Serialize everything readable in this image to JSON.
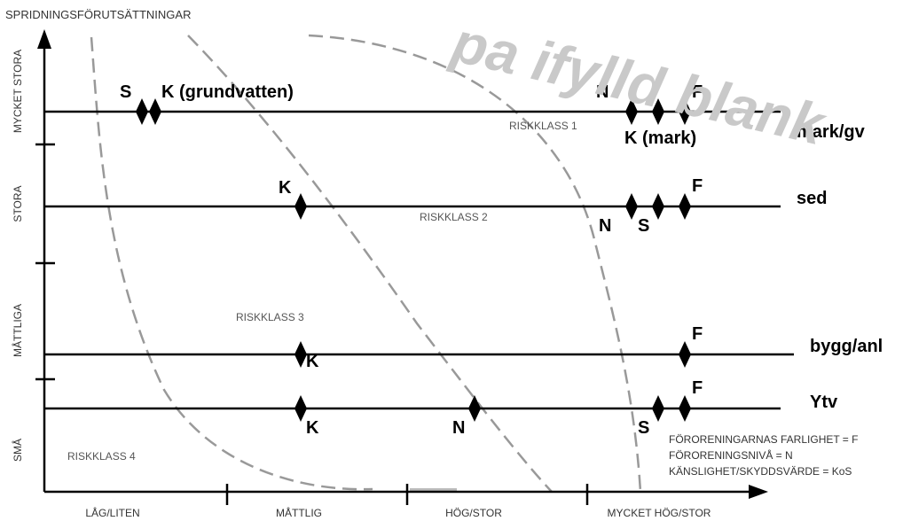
{
  "diagram": {
    "y_axis_title": "SPRIDNINGSFÖRUTSÄTTNINGAR",
    "y_categories": [
      "MYCKET STORA",
      "STORA",
      "MÅTTLIGA",
      "SMÅ"
    ],
    "x_categories": [
      "LÅG/LITEN",
      "MÅTTLIG",
      "HÖG/STOR",
      "MYCKET HÖG/STOR"
    ],
    "risk_classes": [
      "RISKKLASS 1",
      "RISKKLASS 2",
      "RISKKLASS 3",
      "RISKKLASS 4"
    ],
    "rows": [
      {
        "name": "mark/gv",
        "labels": [
          "S",
          "K (grundvatten)",
          "N",
          "K (mark)",
          "F"
        ]
      },
      {
        "name": "sed",
        "labels": [
          "K",
          "F",
          "N",
          "S"
        ]
      },
      {
        "name": "bygg/anl",
        "labels": [
          "F",
          "K"
        ]
      },
      {
        "name": "Ytv",
        "labels": [
          "F",
          "K",
          "N",
          "S"
        ]
      }
    ],
    "legend": [
      "FÖRORENINGARNAS FARLIGHET = F",
      "FÖRORENINGSNIVÅ = N",
      "KÄNSLIGHET/SKYDDSVÄRDE = KoS"
    ],
    "watermark": "pa ifylld blank"
  }
}
